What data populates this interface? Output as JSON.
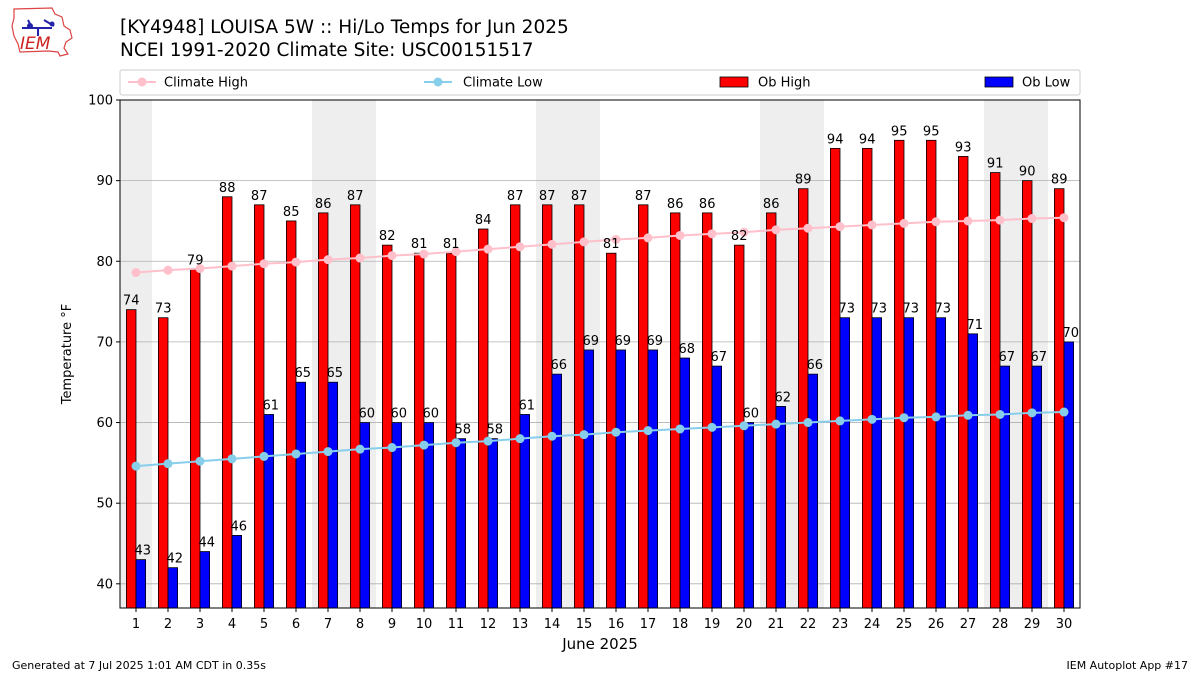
{
  "header": {
    "title_line1": "[KY4948] LOUISA 5W :: Hi/Lo Temps for Jun 2025",
    "title_line2": "NCEI 1991-2020 Climate Site: USC00151517"
  },
  "logo": {
    "text": "IEM"
  },
  "footer": {
    "generated": "Generated at 7 Jul 2025 1:01 AM CDT in 0.35s",
    "app": "IEM Autoplot App #17"
  },
  "colors": {
    "ob_high": "#ff0000",
    "ob_low": "#0000ff",
    "climate_high": "#ffc0cb",
    "climate_low": "#87ceeb",
    "weekend_shade": "#eeeeee",
    "grid": "#b0b0b0"
  },
  "chart_data": {
    "type": "bar",
    "title": "[KY4948] LOUISA 5W :: Hi/Lo Temps for Jun 2025",
    "xlabel": "June 2025",
    "ylabel": "Temperature °F",
    "ylim": [
      37,
      100
    ],
    "yticks": [
      40,
      50,
      60,
      70,
      80,
      90,
      100
    ],
    "grid": true,
    "legend_placement": "top",
    "weekend_bands": [
      [
        1,
        1
      ],
      [
        7,
        8
      ],
      [
        14,
        15
      ],
      [
        21,
        22
      ],
      [
        28,
        29
      ]
    ],
    "categories": [
      "1",
      "2",
      "3",
      "4",
      "5",
      "6",
      "7",
      "8",
      "9",
      "10",
      "11",
      "12",
      "13",
      "14",
      "15",
      "16",
      "17",
      "18",
      "19",
      "20",
      "21",
      "22",
      "23",
      "24",
      "25",
      "26",
      "27",
      "28",
      "29",
      "30"
    ],
    "series": [
      {
        "name": "Ob High",
        "kind": "bar",
        "values": [
          74,
          73,
          79,
          88,
          87,
          85,
          86,
          87,
          82,
          81,
          81,
          84,
          87,
          87,
          87,
          81,
          87,
          86,
          86,
          82,
          86,
          89,
          94,
          94,
          95,
          95,
          93,
          91,
          90,
          89
        ]
      },
      {
        "name": "Ob Low",
        "kind": "bar",
        "values": [
          43,
          42,
          44,
          46,
          61,
          65,
          65,
          60,
          60,
          60,
          58,
          58,
          61,
          66,
          69,
          69,
          69,
          68,
          67,
          60,
          62,
          66,
          73,
          73,
          73,
          73,
          71,
          67,
          67,
          70
        ]
      },
      {
        "name": "Climate High",
        "kind": "line",
        "values": [
          78.6,
          78.9,
          79.1,
          79.4,
          79.7,
          79.9,
          80.2,
          80.4,
          80.7,
          80.9,
          81.2,
          81.5,
          81.8,
          82.1,
          82.4,
          82.7,
          82.9,
          83.2,
          83.4,
          83.6,
          83.9,
          84.1,
          84.3,
          84.5,
          84.7,
          84.9,
          85.0,
          85.1,
          85.3,
          85.4
        ]
      },
      {
        "name": "Climate Low",
        "kind": "line",
        "values": [
          54.6,
          54.9,
          55.2,
          55.5,
          55.8,
          56.1,
          56.4,
          56.7,
          56.9,
          57.2,
          57.5,
          57.7,
          58.0,
          58.3,
          58.5,
          58.8,
          59.0,
          59.2,
          59.4,
          59.6,
          59.8,
          60.0,
          60.2,
          60.4,
          60.6,
          60.7,
          60.9,
          61.0,
          61.2,
          61.3
        ]
      }
    ]
  }
}
